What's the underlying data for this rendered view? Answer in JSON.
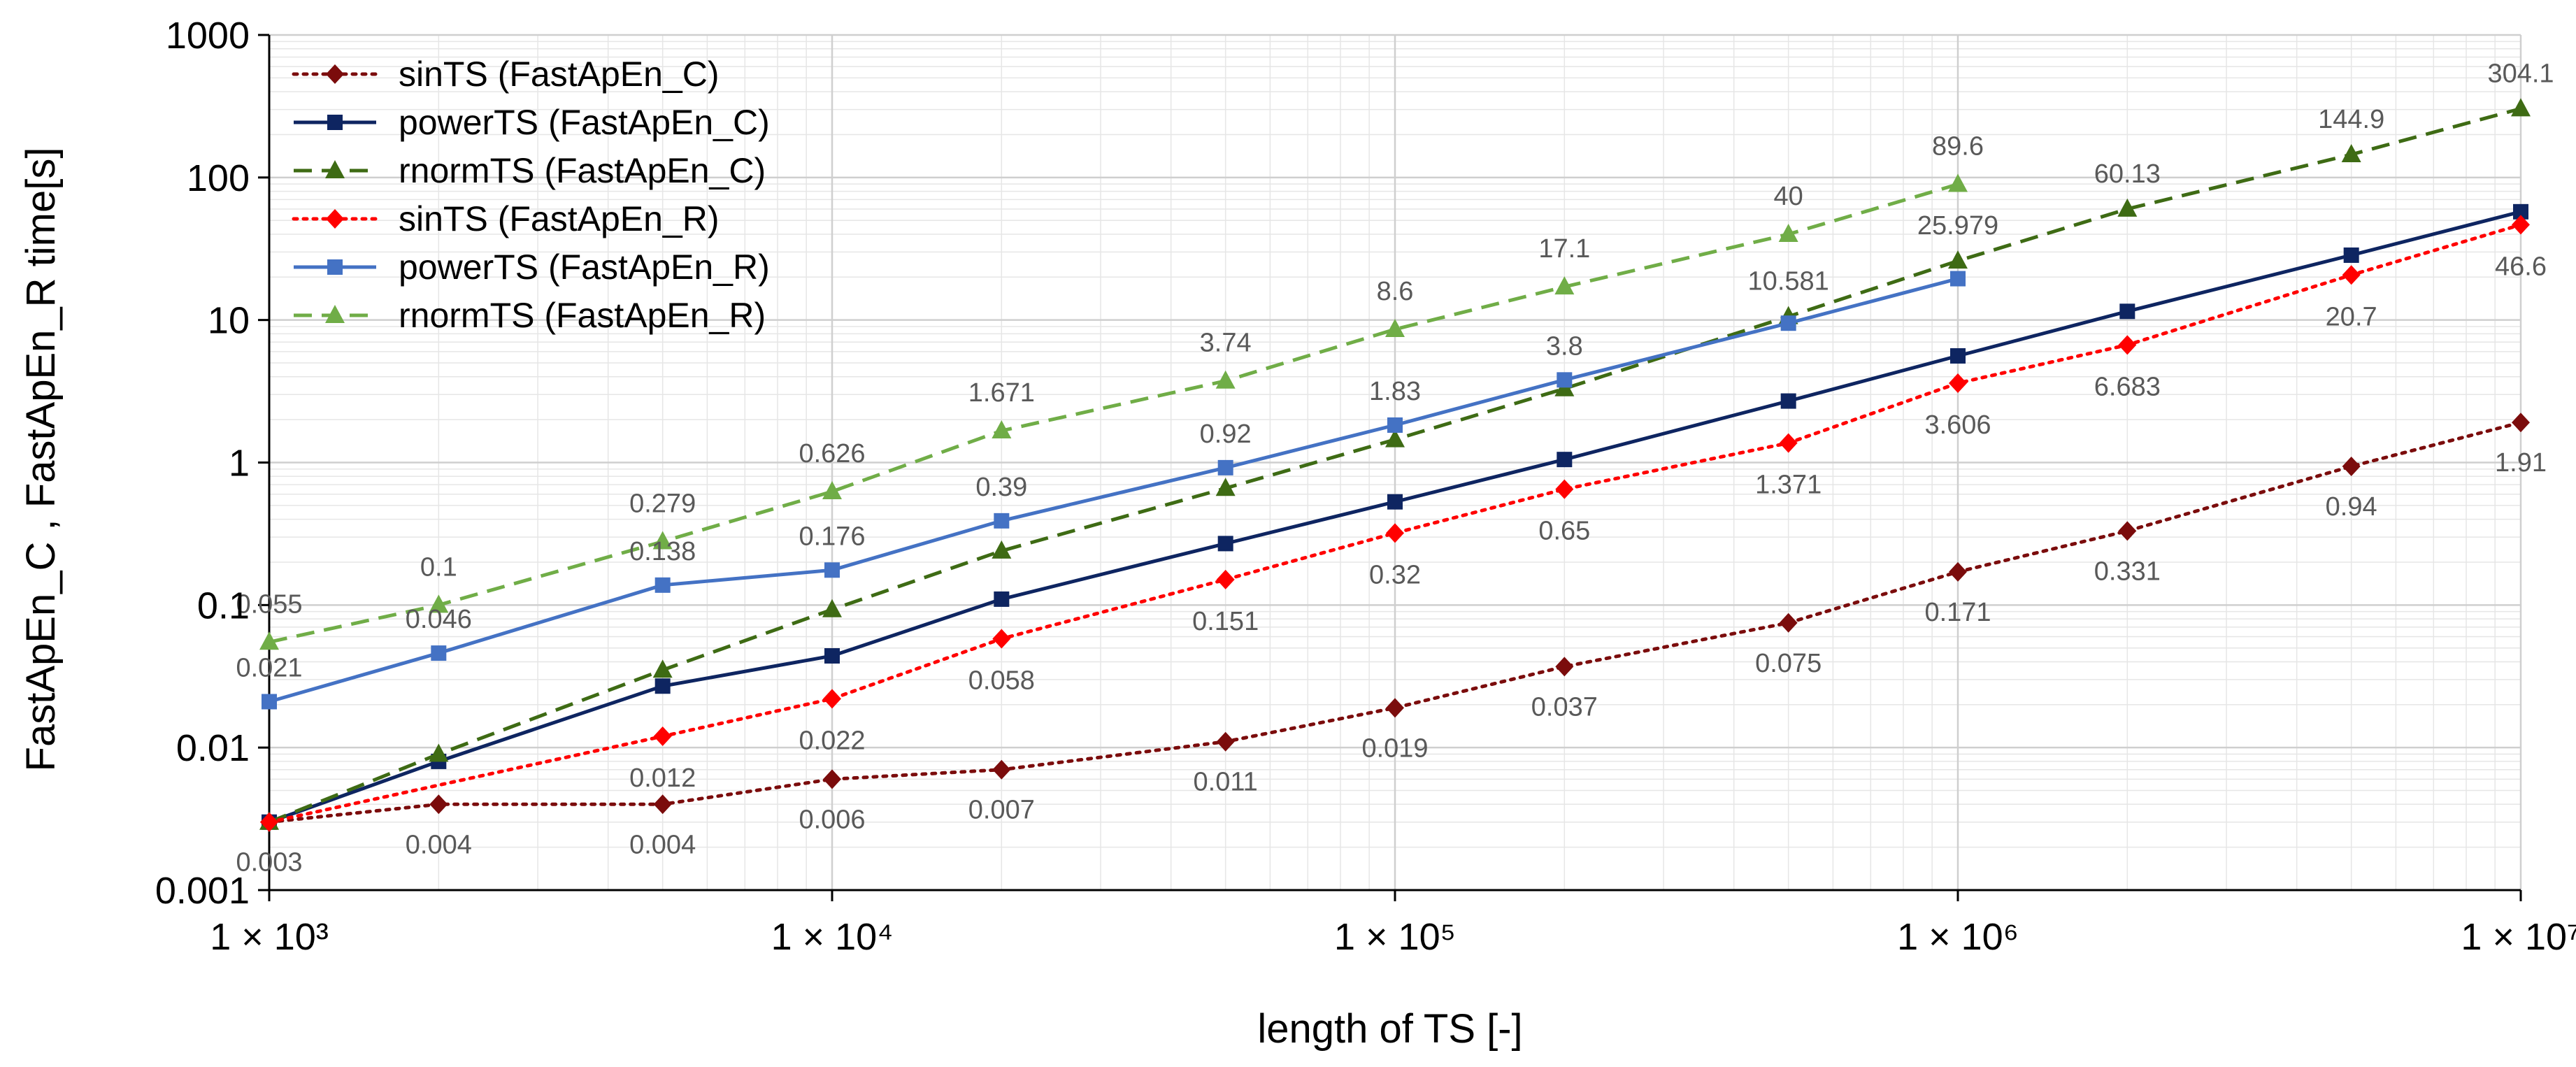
{
  "chart_data": {
    "type": "line",
    "title": "",
    "xlabel": "length of TS [-]",
    "ylabel": "FastApEn_C ,  FastApEn_R  time[s]",
    "x_scale": "log",
    "y_scale": "log",
    "xlim": [
      1000,
      10000000
    ],
    "ylim": [
      0.001,
      1000
    ],
    "grid": true,
    "legend_position": "top-left",
    "x_ticks": [
      {
        "value": 1000,
        "label": "1 × 10³"
      },
      {
        "value": 10000,
        "label": "1 × 10⁴"
      },
      {
        "value": 100000,
        "label": "1 × 10⁵"
      },
      {
        "value": 1000000,
        "label": "1 × 10⁶"
      },
      {
        "value": 10000000,
        "label": "1 × 10⁷"
      }
    ],
    "y_ticks": [
      {
        "value": 0.001,
        "label": "0.001"
      },
      {
        "value": 0.01,
        "label": "0.01"
      },
      {
        "value": 0.1,
        "label": "0.1"
      },
      {
        "value": 1,
        "label": "1"
      },
      {
        "value": 10,
        "label": "10"
      },
      {
        "value": 100,
        "label": "100"
      },
      {
        "value": 1000,
        "label": "1000"
      }
    ],
    "series": [
      {
        "name": "sinTS (FastApEn_C)",
        "color": "#7B0C0C",
        "dash": "dotted",
        "marker": "diamond",
        "x": [
          1000,
          2000,
          5000,
          10000,
          20000,
          50000,
          100000,
          200000,
          500000,
          1000000,
          2000000,
          5000000,
          10000000
        ],
        "y": [
          0.003,
          0.004,
          0.004,
          0.006,
          0.007,
          0.011,
          0.019,
          0.037,
          0.075,
          0.171,
          0.331,
          0.94,
          1.91
        ],
        "labels": [
          "0.003",
          "0.004",
          "0.004",
          "0.006",
          "0.007",
          "0.011",
          "0.019",
          "0.037",
          "0.075",
          "0.171",
          "0.331",
          "0.94",
          "1.91"
        ]
      },
      {
        "name": "powerTS (FastApEn_C)",
        "color": "#0E2561",
        "dash": "solid",
        "marker": "square",
        "x": [
          1000,
          2000,
          5000,
          10000,
          20000,
          50000,
          100000,
          200000,
          500000,
          1000000,
          2000000,
          5000000,
          10000000
        ],
        "y": [
          0.003,
          0.008,
          0.027,
          0.044,
          0.11,
          0.27,
          0.53,
          1.05,
          2.7,
          5.6,
          11.5,
          28.5,
          57.5
        ],
        "labels": []
      },
      {
        "name": "rnormTS (FastApEn_C)",
        "color": "#3E6B14",
        "dash": "dashed",
        "marker": "triangle",
        "x": [
          1000,
          2000,
          5000,
          10000,
          20000,
          50000,
          100000,
          200000,
          500000,
          1000000,
          2000000,
          5000000,
          10000000
        ],
        "y": [
          0.003,
          0.009,
          0.035,
          0.093,
          0.24,
          0.66,
          1.45,
          3.3,
          10.581,
          25.979,
          60.13,
          144.9,
          304.1
        ],
        "labels": [
          "",
          "",
          "",
          "",
          "",
          "",
          "",
          "",
          "10.581",
          "25.979",
          "60.13",
          "144.9",
          "304.1"
        ]
      },
      {
        "name": "sinTS (FastApEn_R)",
        "color": "#FF0000",
        "dash": "dotted",
        "marker": "diamond",
        "x": [
          1000,
          5000,
          10000,
          20000,
          50000,
          100000,
          200000,
          500000,
          1000000,
          2000000,
          5000000,
          10000000
        ],
        "y": [
          0.003,
          0.012,
          0.022,
          0.058,
          0.151,
          0.32,
          0.65,
          1.371,
          3.606,
          6.683,
          20.7,
          46.6
        ],
        "labels": [
          "",
          "0.012",
          "0.022",
          "0.058",
          "0.151",
          "0.32",
          "0.65",
          "1.371",
          "3.606",
          "6.683",
          "20.7",
          "46.6"
        ]
      },
      {
        "name": "powerTS (FastApEn_R)",
        "color": "#4472C4",
        "dash": "solid",
        "marker": "square",
        "x": [
          1000,
          2000,
          5000,
          10000,
          20000,
          50000,
          100000,
          200000,
          500000,
          1000000
        ],
        "y": [
          0.021,
          0.046,
          0.138,
          0.176,
          0.39,
          0.92,
          1.83,
          3.8,
          9.5,
          19.5
        ],
        "labels": [
          "0.021",
          "0.046",
          "0.138",
          "0.176",
          "0.39",
          "0.92",
          "1.83",
          "3.8",
          "",
          ""
        ]
      },
      {
        "name": "rnormTS (FastApEn_R)",
        "color": "#70AD47",
        "dash": "dashed",
        "marker": "triangle",
        "x": [
          1000,
          2000,
          5000,
          10000,
          20000,
          50000,
          100000,
          200000,
          500000,
          1000000
        ],
        "y": [
          0.055,
          0.1,
          0.279,
          0.626,
          1.671,
          3.74,
          8.6,
          17.1,
          40,
          89.6
        ],
        "labels": [
          "0.055",
          "0.1",
          "0.279",
          "0.626",
          "1.671",
          "3.74",
          "8.6",
          "17.1",
          "40",
          "89.6"
        ]
      }
    ]
  }
}
